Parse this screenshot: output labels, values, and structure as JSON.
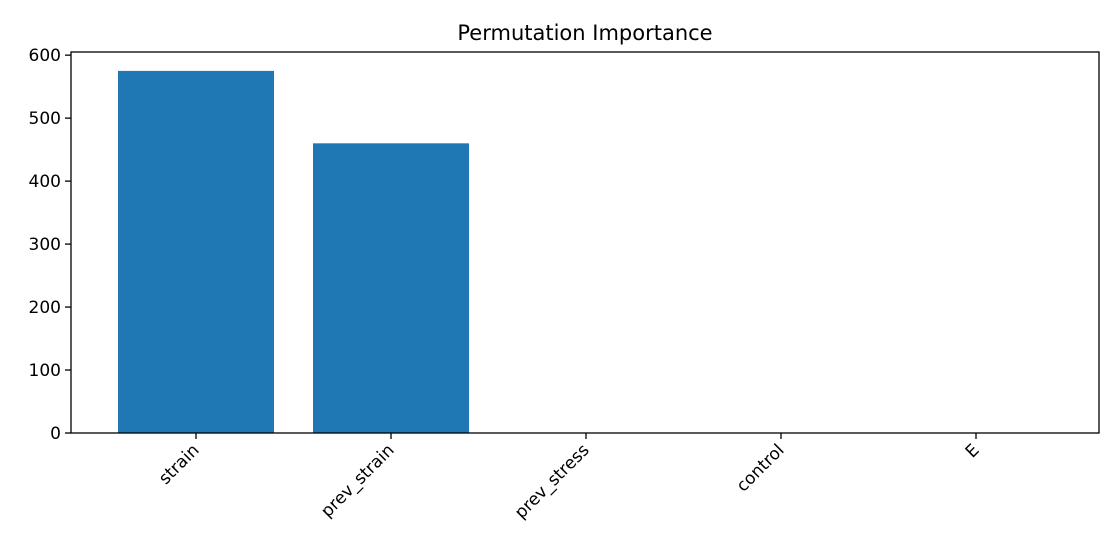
{
  "chart_data": {
    "type": "bar",
    "title": "Permutation Importance",
    "xlabel": "",
    "ylabel": "",
    "categories": [
      "strain",
      "prev_strain",
      "prev_stress",
      "control",
      "E"
    ],
    "values": [
      575,
      460,
      0,
      0,
      0
    ],
    "ylim": [
      0,
      605
    ],
    "yticks": [
      0,
      100,
      200,
      300,
      400,
      500,
      600
    ],
    "bar_color": "#1f77b4",
    "grid": false,
    "legend": "none"
  }
}
